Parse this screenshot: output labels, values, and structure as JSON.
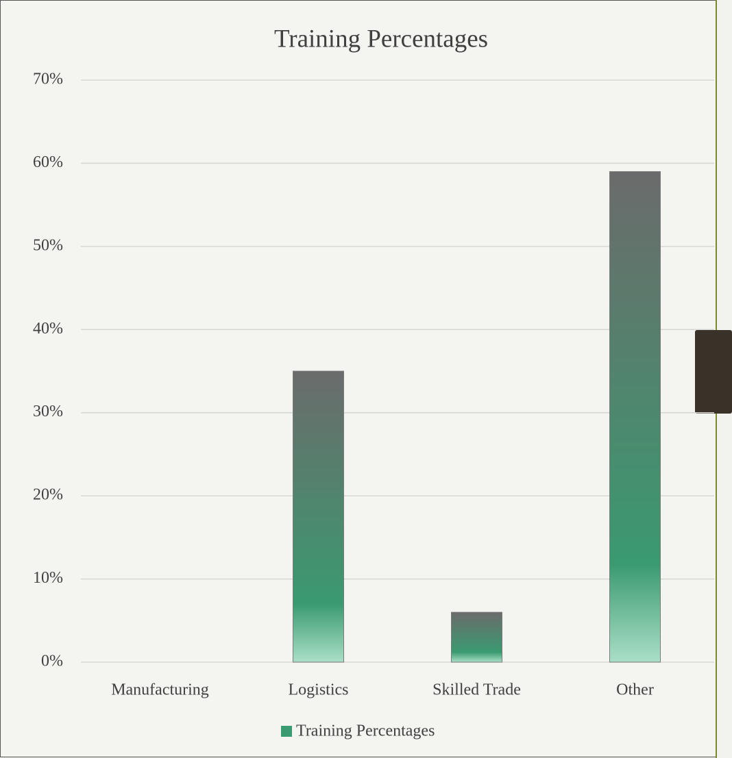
{
  "chart_data": {
    "type": "bar",
    "title": "Training Percentages",
    "categories": [
      "Manufacturing",
      "Logistics",
      "Skilled Trade",
      "Other"
    ],
    "series": [
      {
        "name": "Training Percentages",
        "color": "#3a9a70",
        "values": [
          0,
          35,
          6,
          59
        ]
      }
    ],
    "ylim": [
      0,
      70
    ],
    "yticks": [
      {
        "value": 0,
        "label": "0%"
      },
      {
        "value": 10,
        "label": "10%"
      },
      {
        "value": 20,
        "label": "20%"
      },
      {
        "value": 30,
        "label": "30%"
      },
      {
        "value": 40,
        "label": "40%"
      },
      {
        "value": 50,
        "label": "50%"
      },
      {
        "value": 60,
        "label": "60%"
      },
      {
        "value": 70,
        "label": "70%"
      }
    ],
    "grid": true,
    "legend": "bottom"
  }
}
